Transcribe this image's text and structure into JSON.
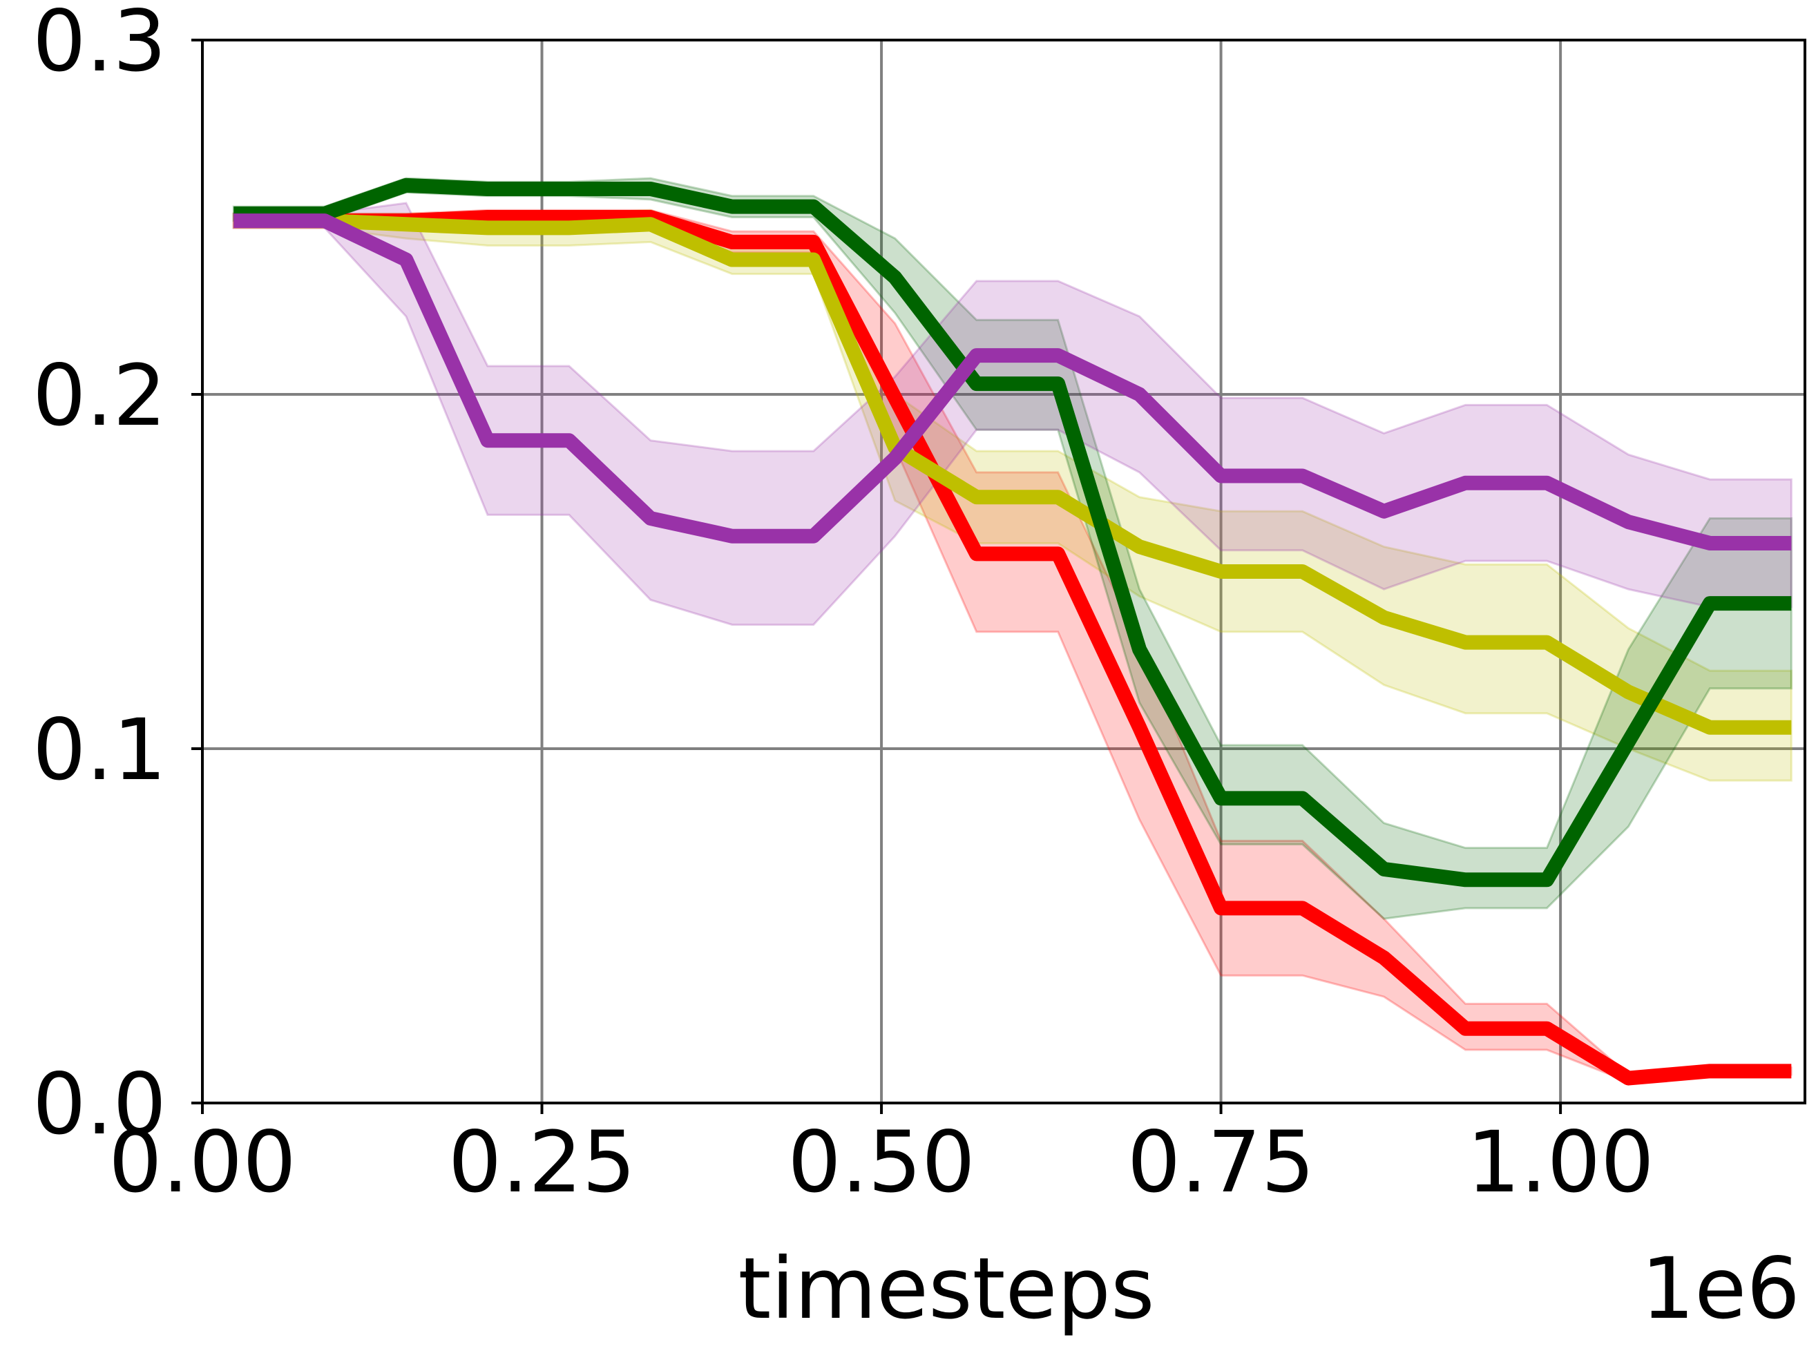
{
  "chart_data": {
    "type": "line",
    "title": "",
    "xlabel": "timesteps",
    "ylabel": "",
    "x_offset_text": "1e6",
    "xlim": [
      0,
      1.18
    ],
    "ylim": [
      0,
      0.3
    ],
    "xticks": [
      0.0,
      0.25,
      0.5,
      0.75,
      1.0
    ],
    "xtick_labels": [
      "0.00",
      "0.25",
      "0.50",
      "0.75",
      "1.00"
    ],
    "yticks": [
      0.0,
      0.1,
      0.2,
      0.3
    ],
    "ytick_labels": [
      "0.0",
      "0.1",
      "0.2",
      "0.3"
    ],
    "grid": true,
    "legend": "none",
    "x": [
      0.023,
      0.09,
      0.15,
      0.21,
      0.27,
      0.33,
      0.39,
      0.45,
      0.51,
      0.57,
      0.63,
      0.69,
      0.75,
      0.81,
      0.87,
      0.93,
      0.99,
      1.05,
      1.11,
      1.17
    ],
    "series": [
      {
        "color": "#ff0000",
        "values": [
          0.249,
          0.249,
          0.249,
          0.25,
          0.25,
          0.25,
          0.243,
          0.243,
          0.199,
          0.155,
          0.155,
          0.106,
          0.055,
          0.055,
          0.041,
          0.021,
          0.021,
          0.007,
          0.009,
          0.009
        ],
        "lower": [
          0.247,
          0.247,
          0.247,
          0.247,
          0.247,
          0.247,
          0.24,
          0.24,
          0.185,
          0.133,
          0.133,
          0.08,
          0.036,
          0.036,
          0.03,
          0.015,
          0.015,
          0.006,
          0.008,
          0.008
        ],
        "upper": [
          0.251,
          0.251,
          0.251,
          0.252,
          0.252,
          0.252,
          0.246,
          0.246,
          0.22,
          0.178,
          0.178,
          0.13,
          0.074,
          0.074,
          0.052,
          0.028,
          0.028,
          0.008,
          0.01,
          0.01
        ]
      },
      {
        "color": "#bfbf00",
        "values": [
          0.249,
          0.249,
          0.248,
          0.247,
          0.247,
          0.248,
          0.238,
          0.238,
          0.185,
          0.171,
          0.171,
          0.157,
          0.15,
          0.15,
          0.137,
          0.13,
          0.13,
          0.116,
          0.106,
          0.106
        ],
        "lower": [
          0.247,
          0.247,
          0.244,
          0.242,
          0.242,
          0.243,
          0.234,
          0.234,
          0.17,
          0.158,
          0.158,
          0.143,
          0.133,
          0.133,
          0.118,
          0.11,
          0.11,
          0.1,
          0.091,
          0.091
        ],
        "upper": [
          0.251,
          0.251,
          0.251,
          0.251,
          0.251,
          0.252,
          0.242,
          0.242,
          0.2,
          0.184,
          0.184,
          0.171,
          0.167,
          0.167,
          0.157,
          0.152,
          0.152,
          0.134,
          0.122,
          0.122
        ]
      },
      {
        "color": "#006400",
        "values": [
          0.251,
          0.251,
          0.259,
          0.258,
          0.258,
          0.258,
          0.253,
          0.253,
          0.233,
          0.203,
          0.203,
          0.128,
          0.086,
          0.086,
          0.066,
          0.063,
          0.063,
          0.102,
          0.141,
          0.141
        ],
        "lower": [
          0.249,
          0.249,
          0.257,
          0.256,
          0.256,
          0.255,
          0.25,
          0.25,
          0.223,
          0.19,
          0.19,
          0.113,
          0.073,
          0.073,
          0.052,
          0.055,
          0.055,
          0.078,
          0.117,
          0.117
        ],
        "upper": [
          0.253,
          0.253,
          0.261,
          0.26,
          0.26,
          0.261,
          0.256,
          0.256,
          0.244,
          0.221,
          0.221,
          0.145,
          0.101,
          0.101,
          0.079,
          0.072,
          0.072,
          0.128,
          0.165,
          0.165
        ]
      },
      {
        "color": "#9932a8",
        "values": [
          0.249,
          0.249,
          0.238,
          0.187,
          0.187,
          0.165,
          0.16,
          0.16,
          0.182,
          0.211,
          0.211,
          0.2,
          0.177,
          0.177,
          0.167,
          0.175,
          0.175,
          0.164,
          0.158,
          0.158
        ],
        "lower": [
          0.247,
          0.247,
          0.222,
          0.166,
          0.166,
          0.142,
          0.135,
          0.135,
          0.16,
          0.19,
          0.19,
          0.178,
          0.156,
          0.156,
          0.145,
          0.153,
          0.153,
          0.145,
          0.14,
          0.14
        ],
        "upper": [
          0.251,
          0.251,
          0.254,
          0.208,
          0.208,
          0.187,
          0.184,
          0.184,
          0.205,
          0.232,
          0.232,
          0.222,
          0.199,
          0.199,
          0.189,
          0.197,
          0.197,
          0.183,
          0.176,
          0.176
        ]
      }
    ]
  }
}
